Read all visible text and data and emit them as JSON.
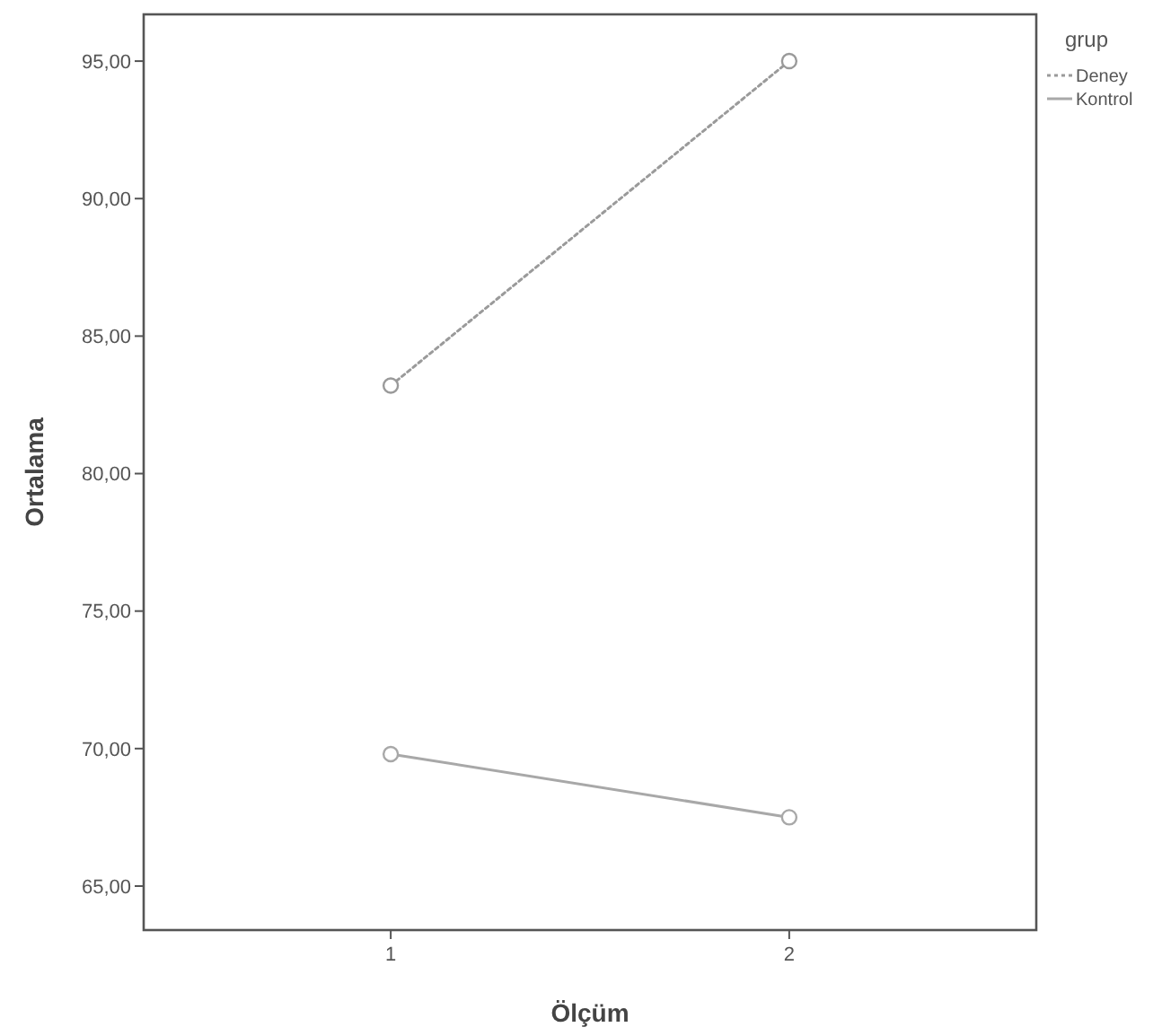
{
  "chart_data": {
    "type": "line",
    "xlabel": "Ölçüm",
    "ylabel": "Ortalama",
    "legend_title": "grup",
    "categories": [
      "1",
      "2"
    ],
    "series": [
      {
        "name": "Deney",
        "color": "#9a9a9a",
        "values": [
          83.2,
          95.0
        ],
        "line_style": "dotted"
      },
      {
        "name": "Kontrol",
        "color": "#a8a8a8",
        "values": [
          69.8,
          67.5
        ],
        "line_style": "solid"
      }
    ],
    "ylim": [
      63.4,
      96.7
    ],
    "yticks": [
      {
        "value": 65,
        "label": "65,00"
      },
      {
        "value": 70,
        "label": "70,00"
      },
      {
        "value": 75,
        "label": "75,00"
      },
      {
        "value": 80,
        "label": "80,00"
      },
      {
        "value": 85,
        "label": "85,00"
      },
      {
        "value": 90,
        "label": "90,00"
      },
      {
        "value": 95,
        "label": "95,00"
      }
    ],
    "marker": "circle",
    "legend": "top right",
    "grid": false
  }
}
